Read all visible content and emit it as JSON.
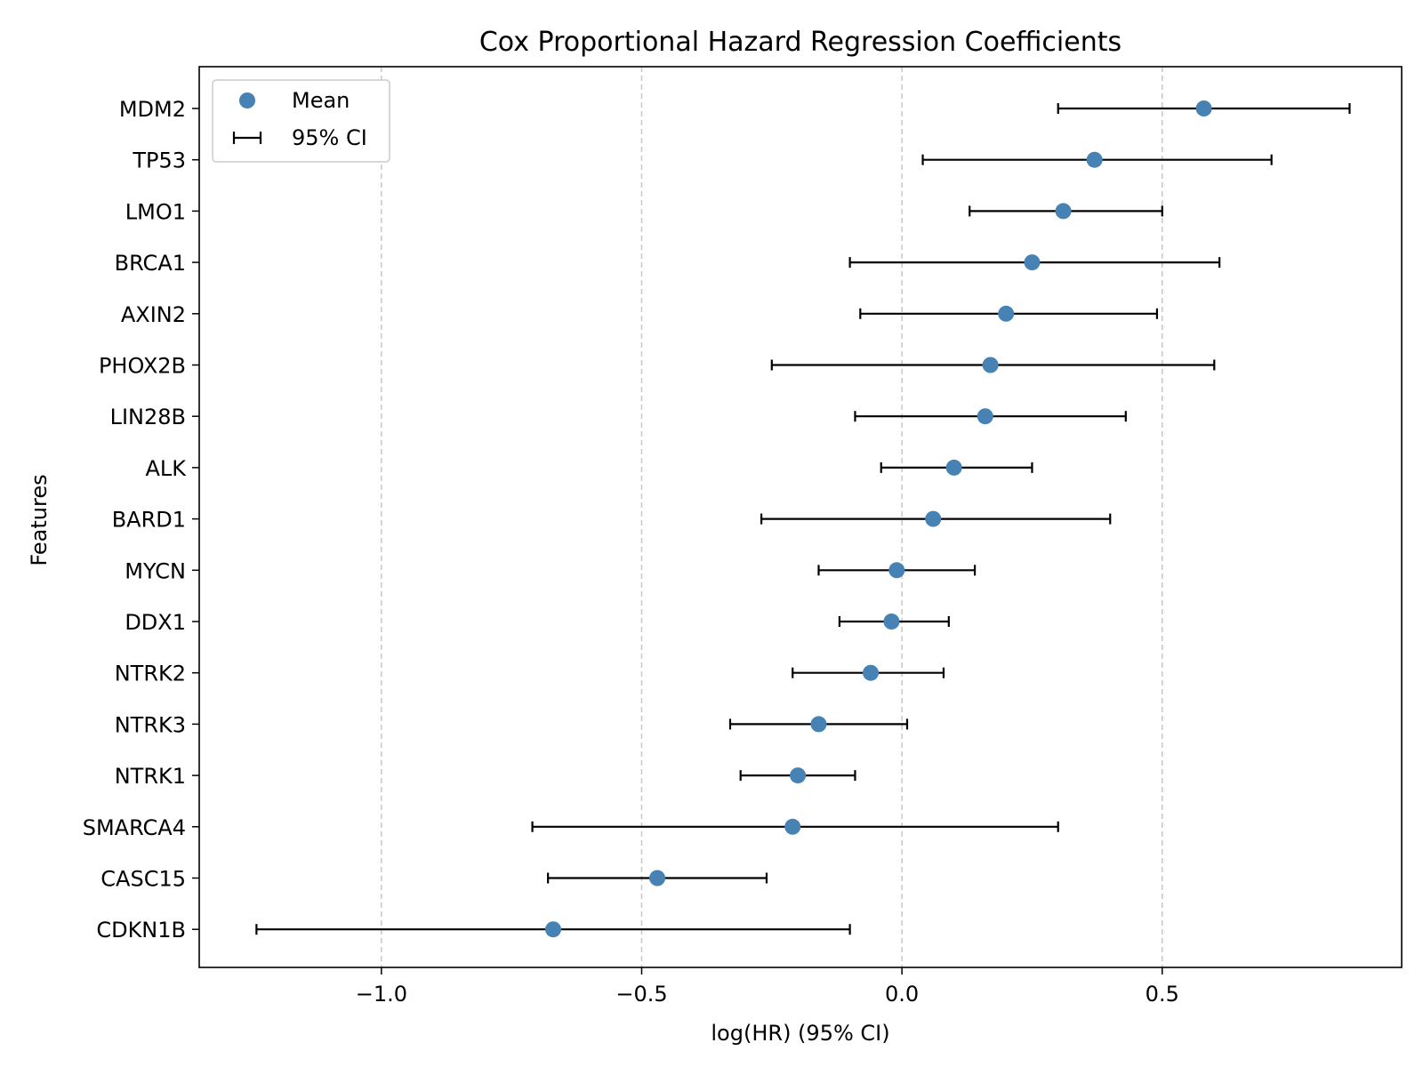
{
  "chart_data": {
    "type": "scatter",
    "title": "Cox Proportional Hazard Regression Coefficients",
    "xlabel": "log(HR) (95% CI)",
    "ylabel": "Features",
    "xlim": [
      -1.35,
      0.96
    ],
    "xticks": [
      -1.0,
      -0.5,
      0.0,
      0.5
    ],
    "xtick_labels": [
      "−1.0",
      "−0.5",
      "0.0",
      "0.5"
    ],
    "grid": "vertical dashed",
    "legend": {
      "placement": "top-left",
      "entries": [
        "Mean",
        "95% CI"
      ]
    },
    "colors": {
      "marker": "#4682b4",
      "errorbar": "#000000",
      "grid": "#c8c8c8"
    },
    "series": [
      {
        "name": "Mean",
        "values": [
          0.58,
          0.37,
          0.31,
          0.25,
          0.2,
          0.17,
          0.16,
          0.1,
          0.06,
          -0.01,
          -0.02,
          -0.06,
          -0.16,
          -0.2,
          -0.21,
          -0.47,
          -0.67
        ]
      },
      {
        "name": "95% CI",
        "lower": [
          0.3,
          0.04,
          0.13,
          -0.1,
          -0.08,
          -0.25,
          -0.09,
          -0.04,
          -0.27,
          -0.16,
          -0.12,
          -0.21,
          -0.33,
          -0.31,
          -0.71,
          -0.68,
          -1.24
        ],
        "upper": [
          0.86,
          0.71,
          0.5,
          0.61,
          0.49,
          0.6,
          0.43,
          0.25,
          0.4,
          0.14,
          0.09,
          0.08,
          0.01,
          -0.09,
          0.3,
          -0.26,
          -0.1
        ]
      }
    ],
    "categories": [
      "MDM2",
      "TP53",
      "LMO1",
      "BRCA1",
      "AXIN2",
      "PHOX2B",
      "LIN28B",
      "ALK",
      "BARD1",
      "MYCN",
      "DDX1",
      "NTRK2",
      "NTRK3",
      "NTRK1",
      "SMARCA4",
      "CASC15",
      "CDKN1B"
    ]
  }
}
